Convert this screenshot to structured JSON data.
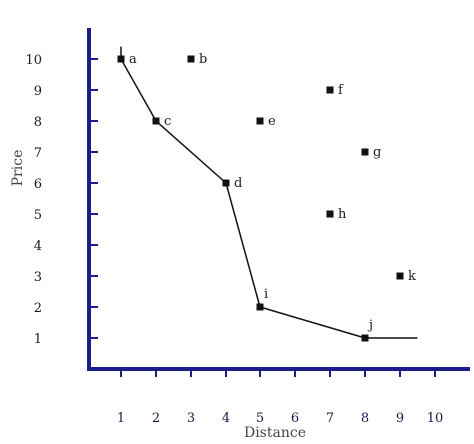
{
  "chart_data": {
    "type": "scatter",
    "xlabel": "Distance",
    "ylabel": "Price",
    "x_ticks": [
      "1",
      "2",
      "3",
      "4",
      "5",
      "6",
      "7",
      "8",
      "9",
      "10"
    ],
    "y_ticks": [
      "1",
      "2",
      "3",
      "4",
      "5",
      "6",
      "7",
      "8",
      "9",
      "10"
    ],
    "points": [
      {
        "label": "a",
        "x": 1,
        "y": 10
      },
      {
        "label": "b",
        "x": 3,
        "y": 10
      },
      {
        "label": "c",
        "x": 2,
        "y": 8
      },
      {
        "label": "d",
        "x": 4,
        "y": 6
      },
      {
        "label": "e",
        "x": 5,
        "y": 8
      },
      {
        "label": "f",
        "x": 7,
        "y": 9
      },
      {
        "label": "g",
        "x": 8,
        "y": 7
      },
      {
        "label": "h",
        "x": 7,
        "y": 5
      },
      {
        "label": "i",
        "x": 5,
        "y": 2
      },
      {
        "label": "j",
        "x": 8,
        "y": 1
      },
      {
        "label": "k",
        "x": 9,
        "y": 3
      }
    ],
    "frontier": {
      "points": [
        "a",
        "c",
        "d",
        "i",
        "j"
      ],
      "start": {
        "x": 1,
        "y": 10.4
      },
      "end": {
        "x": 9.5,
        "y": 1
      }
    },
    "colors": {
      "axis": "#1c1c8a",
      "marker": "#111111",
      "line": "#111111",
      "tick": "#1c1c8a"
    }
  }
}
